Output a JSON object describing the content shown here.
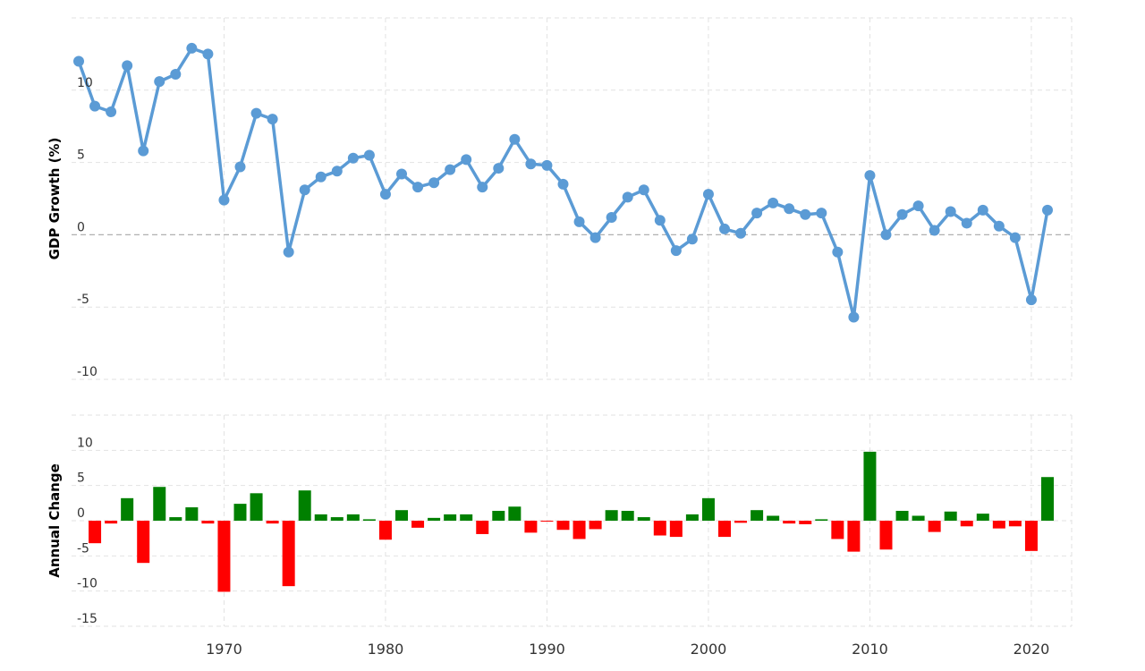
{
  "chart_data": [
    {
      "type": "line",
      "ylabel": "GDP Growth (%)",
      "ylim": [
        -10,
        15
      ],
      "yticks": [
        10,
        5,
        0,
        -5,
        -10
      ],
      "xlim": [
        1961,
        2022
      ],
      "xticks": [
        1970,
        1980,
        1990,
        2000,
        2010,
        2020
      ],
      "grid": true,
      "color": "#5b9bd5",
      "series": [
        {
          "x": [
            1961,
            1962,
            1963,
            1964,
            1965,
            1966,
            1967,
            1968,
            1969,
            1970,
            1971,
            1972,
            1973,
            1974,
            1975,
            1976,
            1977,
            1978,
            1979,
            1980,
            1981,
            1982,
            1983,
            1984,
            1985,
            1986,
            1987,
            1988,
            1989,
            1990,
            1991,
            1992,
            1993,
            1994,
            1995,
            1996,
            1997,
            1998,
            1999,
            2000,
            2001,
            2002,
            2003,
            2004,
            2005,
            2006,
            2007,
            2008,
            2009,
            2010,
            2011,
            2012,
            2013,
            2014,
            2015,
            2016,
            2017,
            2018,
            2019,
            2020,
            2021
          ],
          "values": [
            12.0,
            8.9,
            8.5,
            11.7,
            5.8,
            10.6,
            11.1,
            12.9,
            12.5,
            2.4,
            4.7,
            8.4,
            8.0,
            -1.2,
            3.1,
            4.0,
            4.4,
            5.3,
            5.5,
            2.8,
            4.2,
            3.3,
            3.6,
            4.5,
            5.2,
            3.3,
            4.6,
            6.6,
            4.9,
            4.8,
            3.5,
            0.9,
            -0.2,
            1.2,
            2.6,
            3.1,
            1.0,
            -1.1,
            -0.3,
            2.8,
            0.4,
            0.1,
            1.5,
            2.2,
            1.8,
            1.4,
            1.5,
            -1.2,
            -5.7,
            4.1,
            0.0,
            1.4,
            2.0,
            0.3,
            1.6,
            0.8,
            1.7,
            0.6,
            -0.2,
            -4.5,
            1.7
          ]
        }
      ]
    },
    {
      "type": "bar",
      "ylabel": "Annual Change",
      "ylim": [
        -15,
        15
      ],
      "yticks": [
        10,
        5,
        0,
        -5,
        -10,
        -15
      ],
      "xlim": [
        1961,
        2022
      ],
      "grid": true,
      "positive_color": "#008000",
      "negative_color": "#ff0000",
      "series": [
        {
          "x": [
            1962,
            1963,
            1964,
            1965,
            1966,
            1967,
            1968,
            1969,
            1970,
            1971,
            1972,
            1973,
            1974,
            1975,
            1976,
            1977,
            1978,
            1979,
            1980,
            1981,
            1982,
            1983,
            1984,
            1985,
            1986,
            1987,
            1988,
            1989,
            1990,
            1991,
            1992,
            1993,
            1994,
            1995,
            1996,
            1997,
            1998,
            1999,
            2000,
            2001,
            2002,
            2003,
            2004,
            2005,
            2006,
            2007,
            2008,
            2009,
            2010,
            2011,
            2012,
            2013,
            2014,
            2015,
            2016,
            2017,
            2018,
            2019,
            2020,
            2021
          ],
          "values": [
            -3.2,
            -0.4,
            3.2,
            -6.0,
            4.8,
            0.5,
            1.9,
            -0.4,
            -10.1,
            2.4,
            3.9,
            -0.4,
            -9.3,
            4.3,
            0.9,
            0.5,
            0.9,
            0.2,
            -2.7,
            1.5,
            -1.0,
            0.4,
            0.9,
            0.9,
            -1.9,
            1.4,
            2.0,
            -1.7,
            -0.1,
            -1.3,
            -2.6,
            -1.2,
            1.5,
            1.4,
            0.5,
            -2.1,
            -2.3,
            0.9,
            3.2,
            -2.3,
            -0.3,
            1.5,
            0.7,
            -0.4,
            -0.5,
            0.2,
            -2.6,
            -4.4,
            9.8,
            -4.1,
            1.4,
            0.7,
            -1.6,
            1.3,
            -0.8,
            1.0,
            -1.1,
            -0.8,
            -4.3,
            6.2
          ]
        }
      ]
    }
  ]
}
